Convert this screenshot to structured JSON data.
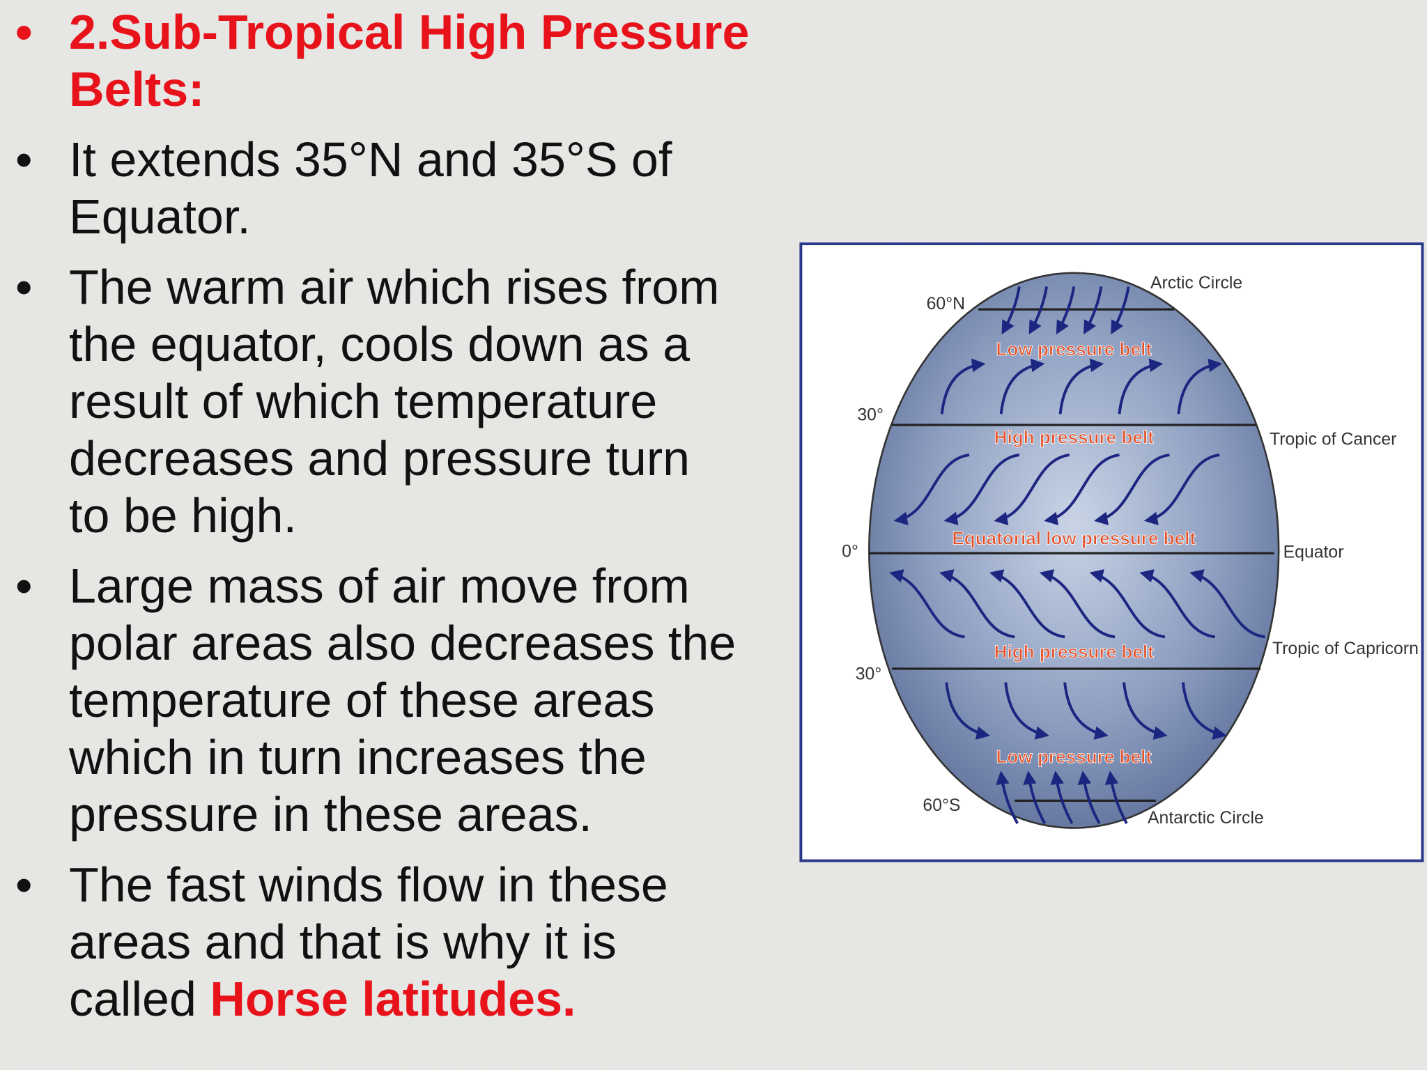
{
  "slide": {
    "bullets": [
      {
        "lines": [
          "2.Sub-Tropical High Pressure",
          "Belts:"
        ]
      },
      {
        "lines": [
          "It extends 35°N and 35°S of",
          "Equator."
        ]
      },
      {
        "lines": [
          "The warm air which rises from",
          "the equator, cools down as a",
          "result of which temperature",
          "decreases and pressure turn",
          "to be high."
        ]
      },
      {
        "lines": [
          "Large mass of air move from",
          "polar areas also decreases the",
          "temperature of these areas",
          "which in turn increases the",
          "pressure in these areas."
        ]
      },
      {
        "lines": [
          "The fast winds flow in these",
          "areas and that is why it is",
          "called"
        ],
        "emphasis": "Horse latitudes."
      }
    ],
    "diagram": {
      "latitudes": [
        "60°N",
        "30°",
        "0°",
        "30°",
        "60°S"
      ],
      "circles": [
        "Arctic Circle",
        "Tropic of Cancer",
        "Equator",
        "Tropic of Capricorn",
        "Antarctic Circle"
      ],
      "belts": [
        "Low pressure belt",
        "High pressure belt",
        "Equatorial low pressure belt",
        "High pressure belt",
        "Low pressure belt"
      ]
    }
  }
}
